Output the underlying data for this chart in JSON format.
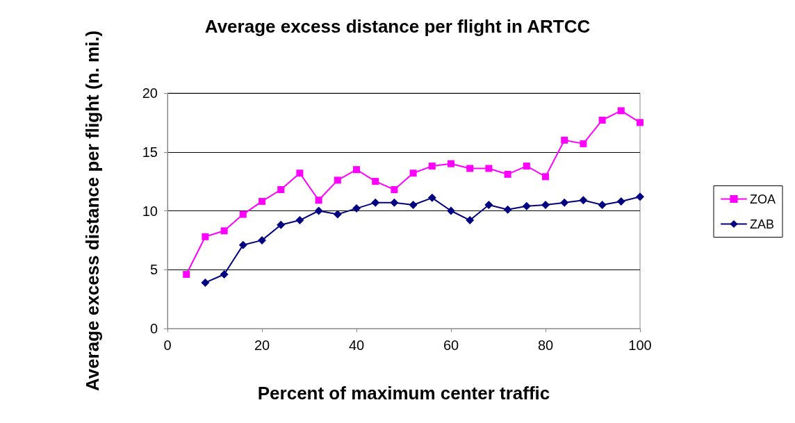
{
  "chart_data": {
    "type": "line",
    "title": "Average excess distance per flight in ARTCC",
    "xlabel": "Percent of maximum center traffic",
    "ylabel": "Average excess distance per flight (n. mi.)",
    "xlim": [
      0,
      100
    ],
    "xticks": [
      0,
      20,
      40,
      60,
      80,
      100
    ],
    "ylim": [
      0,
      20
    ],
    "yticks": [
      0,
      5,
      10,
      15,
      20
    ],
    "grid": "y",
    "legend": "right",
    "series": [
      {
        "name": "ZOA",
        "color": "#ff00ff",
        "marker": "square",
        "x": [
          4,
          8,
          12,
          16,
          20,
          24,
          28,
          32,
          36,
          40,
          44,
          48,
          52,
          56,
          60,
          64,
          68,
          72,
          76,
          80,
          84,
          88,
          92,
          96,
          100
        ],
        "values": [
          4.6,
          7.8,
          8.3,
          9.7,
          10.8,
          11.8,
          13.2,
          10.9,
          12.6,
          13.5,
          12.5,
          11.8,
          13.2,
          13.8,
          14.0,
          13.6,
          13.6,
          13.1,
          13.8,
          12.9,
          16.0,
          15.7,
          17.7,
          18.5,
          17.5
        ]
      },
      {
        "name": "ZAB",
        "color": "#000080",
        "marker": "diamond",
        "x": [
          8,
          12,
          16,
          20,
          24,
          28,
          32,
          36,
          40,
          44,
          48,
          52,
          56,
          60,
          64,
          68,
          72,
          76,
          80,
          84,
          88,
          92,
          96,
          100
        ],
        "values": [
          3.9,
          4.6,
          7.1,
          7.5,
          8.8,
          9.2,
          10.0,
          9.7,
          10.2,
          10.7,
          10.7,
          10.5,
          11.1,
          10.0,
          9.2,
          10.5,
          10.1,
          10.4,
          10.5,
          10.7,
          10.9,
          10.5,
          10.8,
          11.2
        ]
      }
    ]
  }
}
